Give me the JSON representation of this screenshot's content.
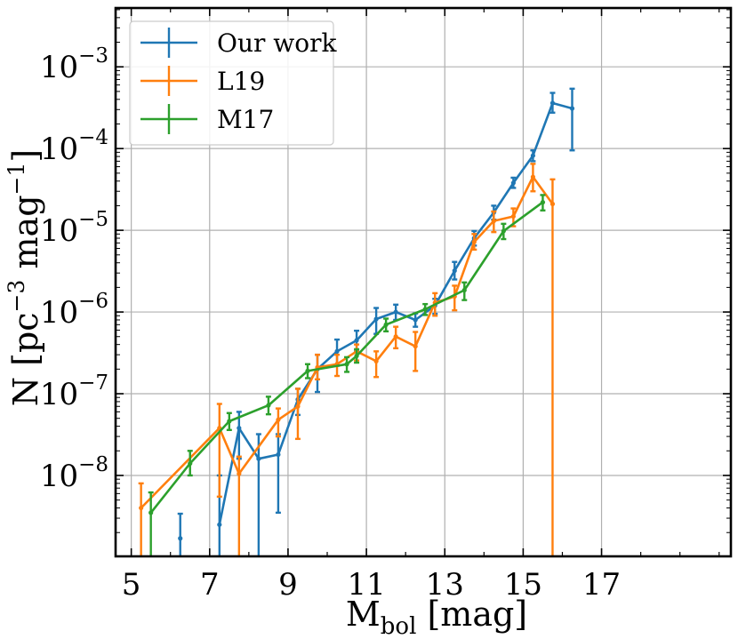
{
  "chart_data": {
    "type": "line",
    "xlabel": "M",
    "xlabel_sub": "bol",
    "xlabel_unit": "[mag]",
    "ylabel": "N [pc",
    "ylabel_exp1": "−3",
    "ylabel_mid": " mag",
    "ylabel_exp2": "−1",
    "ylabel_end": "]",
    "xlim": [
      4.6,
      20.3
    ],
    "ylim_log10": [
      -8.99,
      -2.28
    ],
    "x_ticks": [
      5,
      7,
      9,
      11,
      13,
      15,
      17
    ],
    "y_ticks": [
      {
        "exp": -8,
        "label": "10",
        "sup": "−8"
      },
      {
        "exp": -7,
        "label": "10",
        "sup": "−7"
      },
      {
        "exp": -6,
        "label": "10",
        "sup": "−6"
      },
      {
        "exp": -5,
        "label": "10",
        "sup": "−5"
      },
      {
        "exp": -4,
        "label": "10",
        "sup": "−4"
      },
      {
        "exp": -3,
        "label": "10",
        "sup": "−3"
      }
    ],
    "grid": true,
    "legend_position": "top-left",
    "series": [
      {
        "name": "Our work",
        "color": "#1f77b4",
        "x": [
          6.25,
          7.25,
          7.75,
          8.25,
          8.75,
          9.25,
          9.75,
          10.25,
          10.75,
          11.25,
          11.75,
          12.25,
          12.75,
          13.25,
          13.75,
          14.25,
          14.75,
          15.25,
          15.75,
          16.25
        ],
        "y": [
          1.7e-09,
          2.5e-09,
          3.8e-08,
          1.6e-08,
          1.8e-08,
          8.5e-08,
          2e-07,
          3.3e-07,
          4.5e-07,
          8.2e-07,
          1e-06,
          8e-07,
          1.2e-06,
          3.2e-06,
          8e-06,
          1.65e-05,
          3.8e-05,
          8.2e-05,
          0.00036,
          0.00031
        ],
        "y_low": [
          5e-10,
          5e-10,
          1.6e-08,
          5e-10,
          3.5e-09,
          5.5e-08,
          1.05e-07,
          2.2e-07,
          3.3e-07,
          5.4e-07,
          8e-07,
          6.6e-07,
          9.5e-07,
          2.5e-06,
          6.5e-06,
          1.35e-05,
          3.3e-05,
          7e-05,
          0.000275,
          9.5e-05
        ],
        "y_high": [
          3.4e-09,
          1e-08,
          6e-08,
          3.2e-08,
          3.2e-08,
          1.15e-07,
          3e-07,
          4.6e-07,
          5.9e-07,
          1.12e-06,
          1.23e-06,
          9.6e-07,
          1.45e-06,
          4.1e-06,
          9.8e-06,
          2e-05,
          4.4e-05,
          9.5e-05,
          0.00048,
          0.00054
        ],
        "connect_from": 1
      },
      {
        "name": "L19",
        "color": "#ff7f0e",
        "x": [
          5.25,
          7.25,
          7.75,
          8.75,
          9.25,
          9.75,
          10.25,
          10.75,
          11.25,
          11.75,
          12.25,
          12.75,
          13.25,
          13.75,
          14.25,
          14.75,
          15.25,
          15.75
        ],
        "y": [
          4e-09,
          3.8e-08,
          1.05e-08,
          4.8e-08,
          7e-08,
          2.1e-07,
          2.3e-07,
          3.3e-07,
          2.5e-07,
          5e-07,
          3.8e-07,
          1.3e-06,
          1.55e-06,
          7.2e-06,
          1.3e-05,
          1.48e-05,
          4.5e-05,
          2.1e-05
        ],
        "y_low": [
          5e-10,
          5.5e-09,
          5e-10,
          3e-08,
          2.8e-08,
          1.5e-07,
          1.65e-07,
          2.55e-07,
          1.6e-07,
          3.6e-07,
          1.9e-07,
          9e-07,
          1.05e-06,
          5.8e-06,
          9.5e-06,
          1.12e-05,
          3e-05,
          5e-10
        ],
        "y_high": [
          8e-09,
          7.5e-08,
          1.7e-08,
          6.6e-08,
          1.15e-07,
          3e-07,
          3e-07,
          4e-07,
          3.3e-07,
          6.6e-07,
          5.7e-07,
          1.7e-06,
          2.1e-06,
          9e-06,
          1.7e-05,
          1.85e-05,
          6.5e-05,
          4.2e-05
        ],
        "connect_from": 0
      },
      {
        "name": "M17",
        "color": "#2ca02c",
        "x": [
          5.5,
          6.5,
          7.5,
          8.5,
          9.5,
          10.5,
          10.75,
          11.5,
          12.5,
          13.5,
          14.5,
          15.5
        ],
        "y": [
          3.5e-09,
          1.4e-08,
          4.6e-08,
          7.2e-08,
          1.9e-07,
          2.3e-07,
          2.9e-07,
          7e-07,
          1.08e-06,
          1.85e-06,
          9.8e-06,
          2.2e-05
        ],
        "y_low": [
          5e-10,
          1e-08,
          3.6e-08,
          5.6e-08,
          1.55e-07,
          1.85e-07,
          2.4e-07,
          5.8e-07,
          9.2e-07,
          1.4e-06,
          7.8e-06,
          1.75e-05
        ],
        "y_high": [
          6.2e-09,
          2e-08,
          5.8e-08,
          9.2e-08,
          2.3e-07,
          2.8e-07,
          3.5e-07,
          8.3e-07,
          1.25e-06,
          2.3e-06,
          1.2e-05,
          2.7e-05
        ],
        "connect_from": 0
      }
    ]
  }
}
